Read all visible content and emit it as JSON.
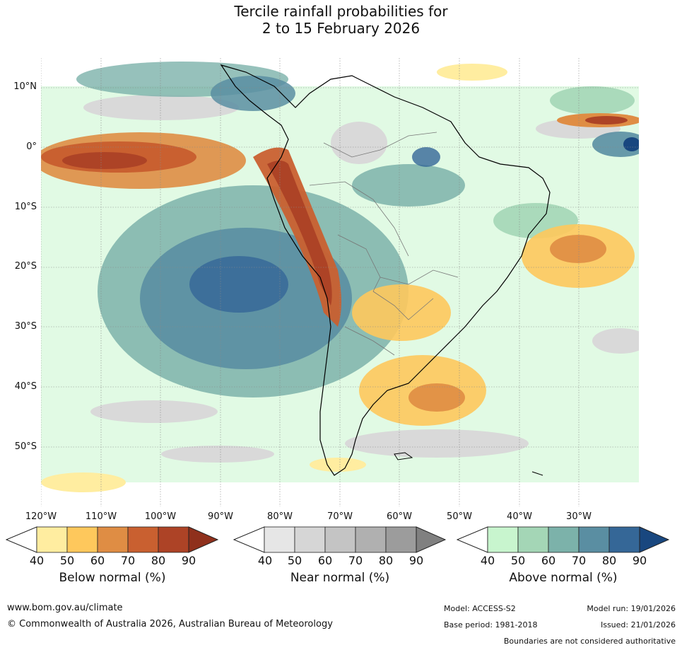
{
  "title": {
    "line1": "Tercile rainfall probabilities for",
    "line2": "2 to 15 February 2026"
  },
  "latitude_labels": [
    "10°N",
    "0°",
    "10°S",
    "20°S",
    "30°S",
    "40°S",
    "50°S"
  ],
  "longitude_labels": [
    "120°W",
    "110°W",
    "100°W",
    "90°W",
    "80°W",
    "70°W",
    "60°W",
    "50°W",
    "40°W",
    "30°W"
  ],
  "legends": [
    {
      "title": "Below normal (%)",
      "ticks": [
        "40",
        "50",
        "60",
        "70",
        "80",
        "90"
      ],
      "colors": [
        "#ffeda0",
        "#fec85c",
        "#df8d44",
        "#c96030",
        "#ad4326",
        "#8f301c"
      ]
    },
    {
      "title": "Near normal (%)",
      "ticks": [
        "40",
        "50",
        "60",
        "70",
        "80",
        "90"
      ],
      "colors": [
        "#e6e6e6",
        "#d6d6d6",
        "#c4c4c4",
        "#b0b0b0",
        "#9c9c9c",
        "#808080"
      ]
    },
    {
      "title": "Above normal (%)",
      "ticks": [
        "40",
        "50",
        "60",
        "70",
        "80",
        "90"
      ],
      "colors": [
        "#c8f5ce",
        "#a4d6b6",
        "#7cb2aa",
        "#5a8ea2",
        "#356797",
        "#19477f"
      ]
    }
  ],
  "footer": {
    "website": "www.bom.gov.au/climate",
    "copyright": "© Commonwealth of Australia 2026, Australian Bureau of Meteorology",
    "model": "Model: ACCESS-S2",
    "model_run": "Model run: 19/01/2026",
    "base_period": "Base period: 1981-2018",
    "issued": "Issued: 21/01/2026",
    "disclaimer": "Boundaries are not considered authoritative"
  }
}
